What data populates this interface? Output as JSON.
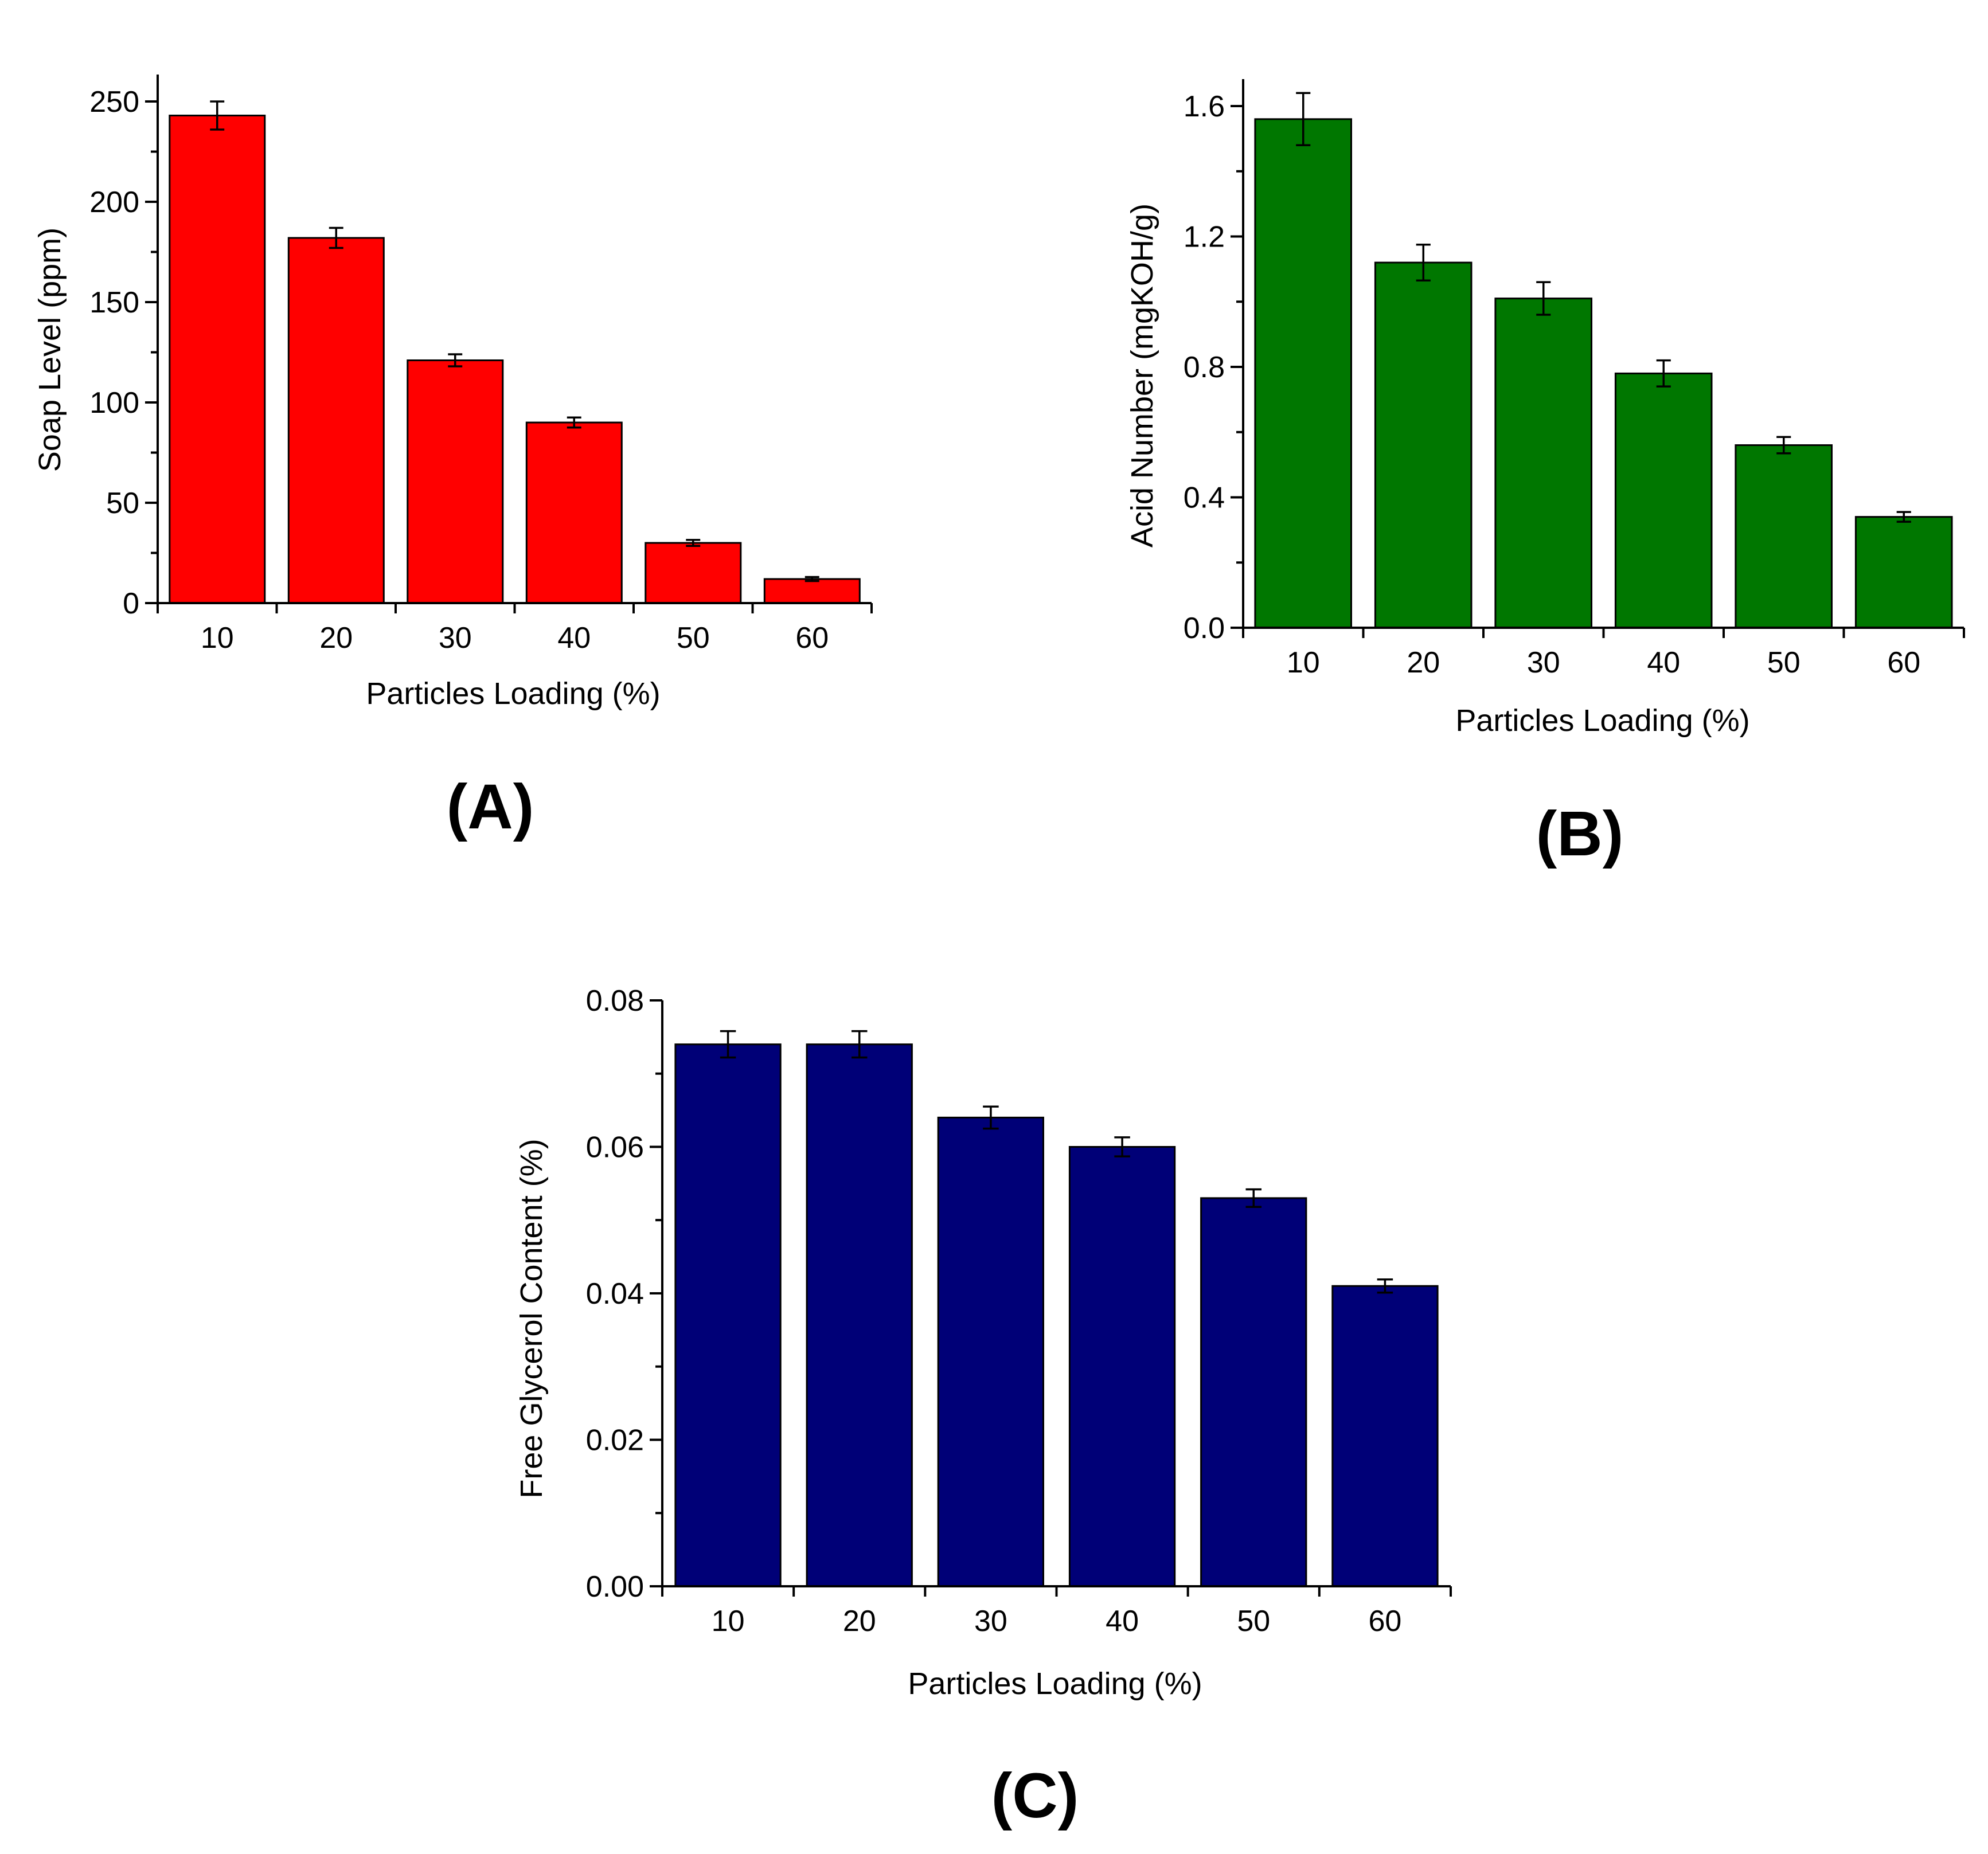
{
  "chart_data": [
    {
      "id": "A",
      "type": "bar",
      "panel_label": "(A)",
      "categories": [
        "10",
        "20",
        "30",
        "40",
        "50",
        "60"
      ],
      "values": [
        243,
        182,
        121,
        90,
        30,
        12
      ],
      "errors": [
        7,
        5,
        3,
        2.5,
        1.5,
        1
      ],
      "xlabel": "Particles Loading (%)",
      "ylabel": "Soap Level (ppm)",
      "ylim": [
        0,
        250
      ],
      "yticks": [
        0,
        50,
        100,
        150,
        200,
        250
      ],
      "ytick_labels": [
        "0",
        "50",
        "100",
        "150",
        "200",
        "250"
      ],
      "bar_color": "#ff0000"
    },
    {
      "id": "B",
      "type": "bar",
      "panel_label": "(B)",
      "categories": [
        "10",
        "20",
        "30",
        "40",
        "50",
        "60"
      ],
      "values": [
        1.56,
        1.12,
        1.01,
        0.78,
        0.56,
        0.34
      ],
      "errors": [
        0.08,
        0.055,
        0.05,
        0.04,
        0.025,
        0.015
      ],
      "xlabel": "Particles Loading (%)",
      "ylabel": "Acid Number (mgKOH/g)",
      "ylim": [
        0,
        1.6
      ],
      "yticks": [
        0,
        0.4,
        0.8,
        1.2,
        1.6
      ],
      "ytick_labels": [
        "0.0",
        "0.4",
        "0.8",
        "1.2",
        "1.6"
      ],
      "bar_color": "#007700"
    },
    {
      "id": "C",
      "type": "bar",
      "panel_label": "(C)",
      "categories": [
        "10",
        "20",
        "30",
        "40",
        "50",
        "60"
      ],
      "values": [
        0.074,
        0.074,
        0.064,
        0.06,
        0.053,
        0.041
      ],
      "errors": [
        0.0018,
        0.0018,
        0.0015,
        0.0013,
        0.0012,
        0.0009
      ],
      "xlabel": "Particles Loading (%)",
      "ylabel": "Free Glycerol Content (%)",
      "ylim": [
        0,
        0.08
      ],
      "yticks": [
        0,
        0.02,
        0.04,
        0.06,
        0.08
      ],
      "ytick_labels": [
        "0.00",
        "0.02",
        "0.04",
        "0.06",
        "0.08"
      ],
      "bar_color": "#000077"
    }
  ]
}
